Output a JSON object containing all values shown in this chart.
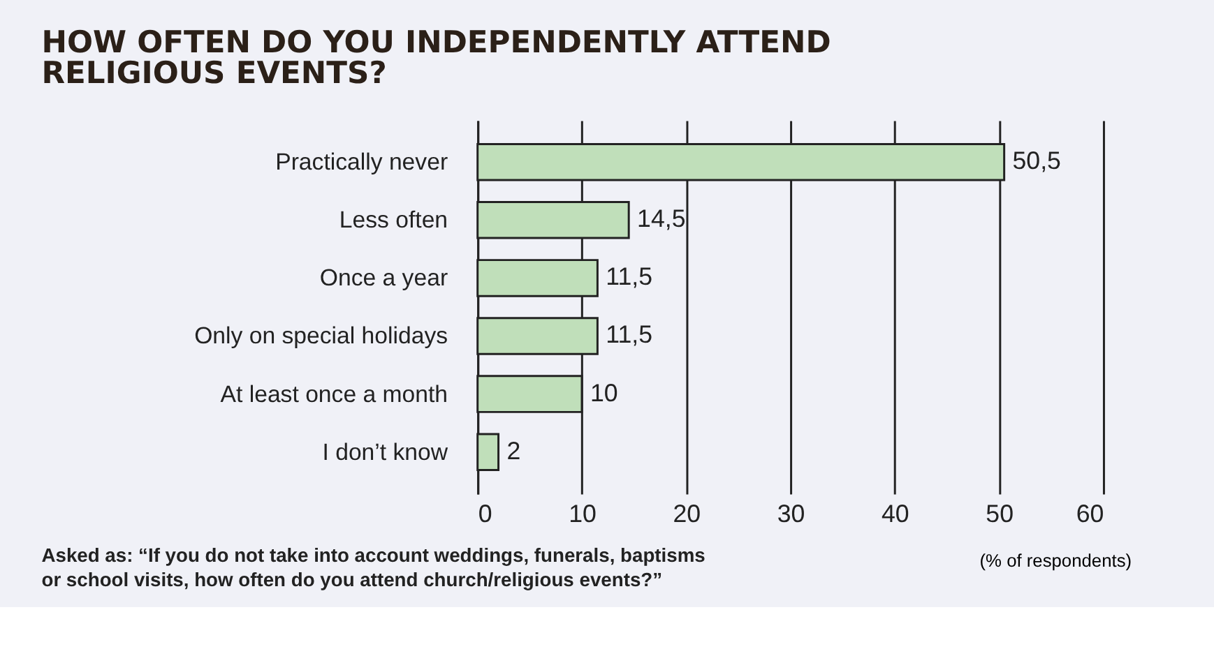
{
  "chart_data": {
    "type": "bar",
    "orientation": "horizontal",
    "title": "HOW OFTEN DO YOU INDEPENDENTLY ATTEND RELIGIOUS EVENTS?",
    "categories": [
      "Practically never",
      "Less often",
      "Once a year",
      "Only on special holidays",
      "At least once a month",
      "I don’t know"
    ],
    "values": [
      50.5,
      14.5,
      11.5,
      11.5,
      10,
      2
    ],
    "value_labels": [
      "50,5",
      "14,5",
      "11,5",
      "11,5",
      "10",
      "2"
    ],
    "color": "#c0dfba",
    "xlim": [
      0,
      60
    ],
    "xticks": [
      0,
      10,
      20,
      30,
      40,
      50,
      60
    ],
    "xlabel": "(% of respondents)",
    "annotations": [
      "Asked as: “If you do not take into account weddings, funerals, baptisms or school visits, how often do you attend church/religious events?”"
    ],
    "grid": "x"
  }
}
